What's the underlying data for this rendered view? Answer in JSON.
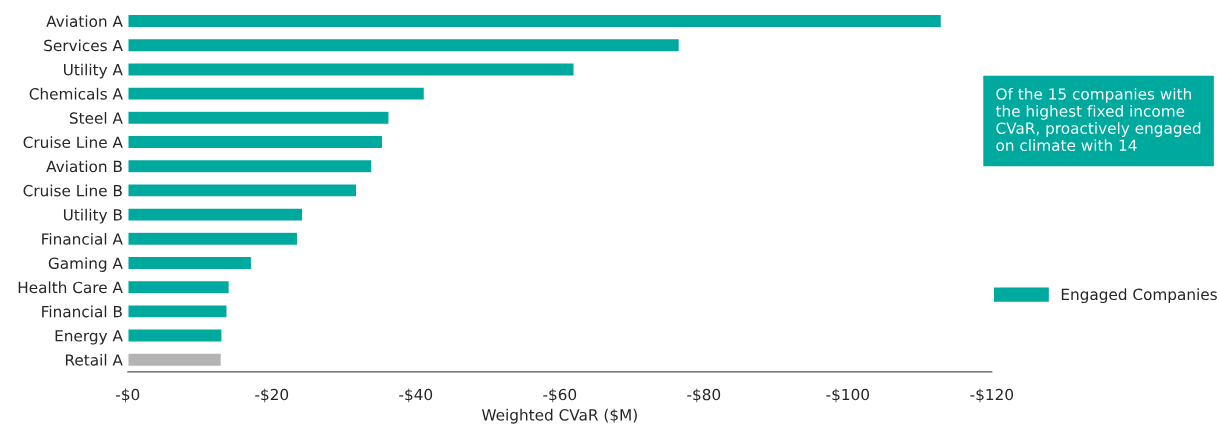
{
  "chart_data": {
    "type": "bar",
    "orientation": "horizontal",
    "xlabel": "Weighted CVaR ($M)",
    "categories": [
      "Aviation A",
      "Services A",
      "Utility A",
      "Chemicals A",
      "Steel A",
      "Cruise Line A",
      "Aviation B",
      "Cruise Line B",
      "Utility B",
      "Financial A",
      "Gaming A",
      "Health Care A",
      "Financial B",
      "Energy A",
      "Retail A"
    ],
    "series": [
      {
        "name": "Engaged Companies",
        "color": "#00a99d",
        "colors": [
          "#00a99d",
          "#00a99d",
          "#00a99d",
          "#00a99d",
          "#00a99d",
          "#00a99d",
          "#00a99d",
          "#00a99d",
          "#00a99d",
          "#00a99d",
          "#00a99d",
          "#00a99d",
          "#00a99d",
          "#00a99d",
          "#b3b3b3"
        ],
        "values": [
          -113,
          -76.6,
          -62,
          -41.2,
          -36.3,
          -35.4,
          -33.9,
          -31.8,
          -24.3,
          -23.6,
          -17.2,
          -14.1,
          -13.8,
          -13.1,
          -13.0
        ]
      }
    ],
    "xlim": [
      0,
      -120
    ],
    "xticks": [
      {
        "value": 0,
        "label": "-$0"
      },
      {
        "value": -20,
        "label": "-$20"
      },
      {
        "value": -40,
        "label": "-$40"
      },
      {
        "value": -60,
        "label": "-$60"
      },
      {
        "value": -80,
        "label": "-$80"
      },
      {
        "value": -100,
        "label": "-$100"
      },
      {
        "value": -120,
        "label": "-$120"
      }
    ],
    "annotations": [
      "Of the 15 companies with the highest fixed income CVaR, proactively engaged on climate with 14"
    ],
    "legend": "right",
    "grid": false
  }
}
